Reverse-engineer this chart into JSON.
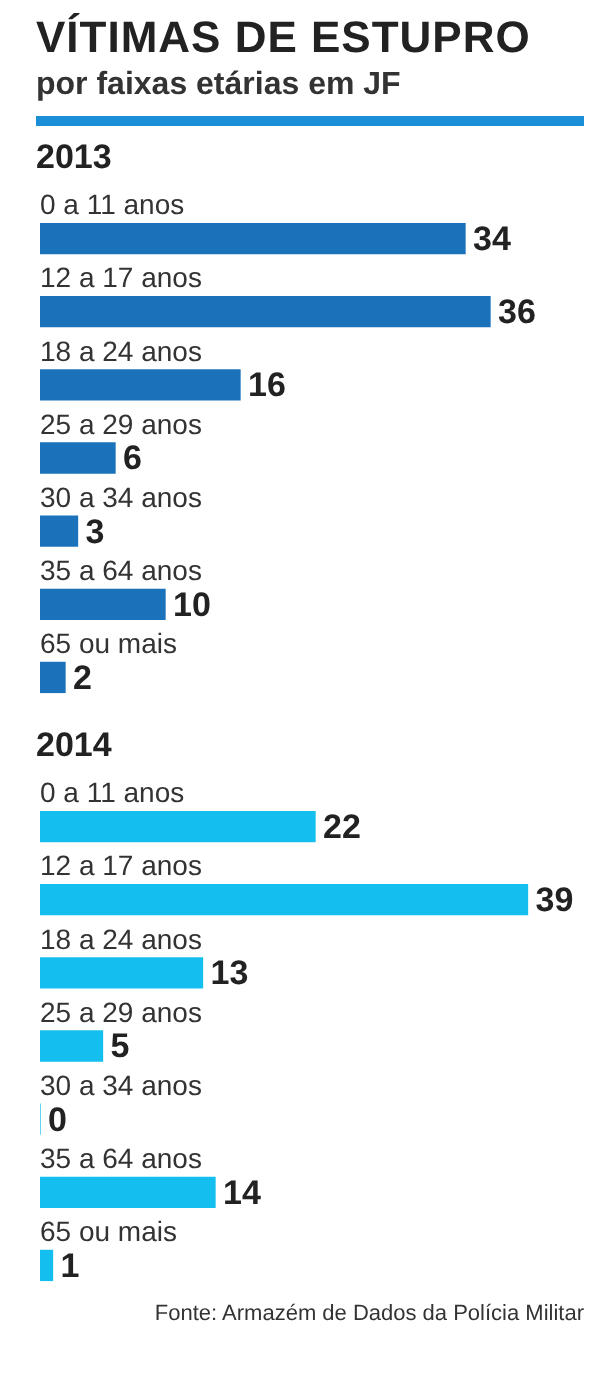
{
  "chart_data": [
    {
      "type": "bar",
      "title": "VÍTIMAS DE ESTUPRO",
      "subtitle": "por faixas etárias em JF",
      "orientation": "horizontal",
      "data_labels": true,
      "categories": [
        "0 a 11 anos",
        "12 a 17 anos",
        "18 a 24 anos",
        "25 a 29 anos",
        "30 a 34 anos",
        "35 a 64 anos",
        "65 ou mais"
      ],
      "series": [
        {
          "name": "2013",
          "color": "#1a72bb",
          "values": [
            34,
            36,
            16,
            6,
            3,
            10,
            2
          ]
        }
      ]
    },
    {
      "type": "bar",
      "orientation": "horizontal",
      "data_labels": true,
      "categories": [
        "0 a 11 anos",
        "12 a 17 anos",
        "18 a 24 anos",
        "25 a 29 anos",
        "30 a 34 anos",
        "35 a 64 anos",
        "65 ou mais"
      ],
      "series": [
        {
          "name": "2014",
          "color": "#14bff0",
          "values": [
            22,
            39,
            13,
            5,
            0,
            14,
            1
          ]
        }
      ],
      "annotations": [
        "Fonte: Armazém de Dados da Polícia Militar"
      ]
    }
  ]
}
